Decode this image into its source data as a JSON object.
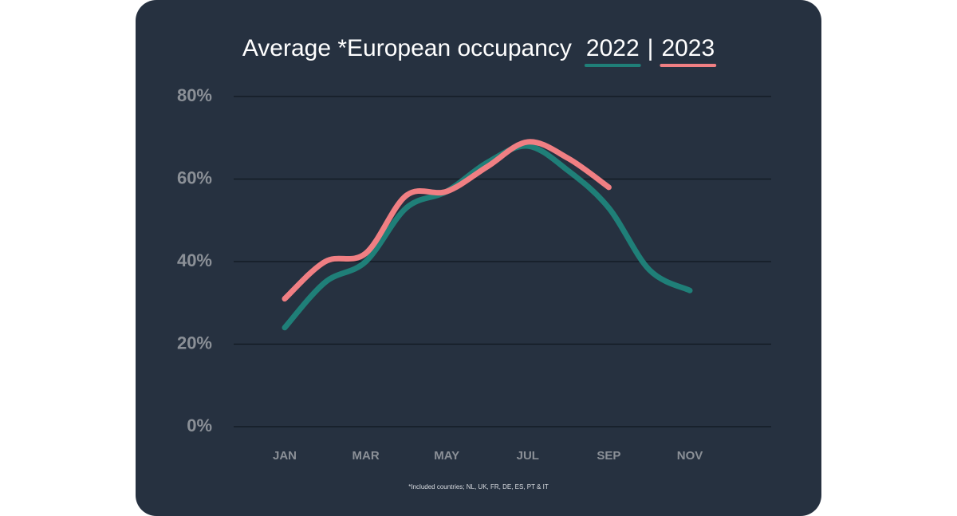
{
  "chart_data": {
    "type": "line",
    "title": "Average *European occupancy",
    "legend_separator": "|",
    "footnote": "*Included countries; NL, UK, FR, DE, ES, PT & IT",
    "categories": [
      "JAN",
      null,
      "MAR",
      null,
      "MAY",
      null,
      "JUL",
      null,
      "SEP",
      null,
      "NOV",
      null
    ],
    "series": [
      {
        "name": "2022",
        "color": "#1f7f78",
        "values": [
          24,
          35,
          40,
          53,
          57,
          64,
          68,
          62,
          53,
          38,
          33,
          null
        ]
      },
      {
        "name": "2023",
        "color": "#f07f83",
        "values": [
          31,
          40,
          42,
          56,
          57,
          63,
          69,
          65,
          58,
          null,
          null,
          null
        ]
      }
    ],
    "ylim": [
      0,
      80
    ],
    "yticks": [
      {
        "value": 0,
        "label": "0%"
      },
      {
        "value": 20,
        "label": "20%"
      },
      {
        "value": 40,
        "label": "40%"
      },
      {
        "value": 60,
        "label": "60%"
      },
      {
        "value": 80,
        "label": "80%"
      }
    ],
    "grid": true
  }
}
